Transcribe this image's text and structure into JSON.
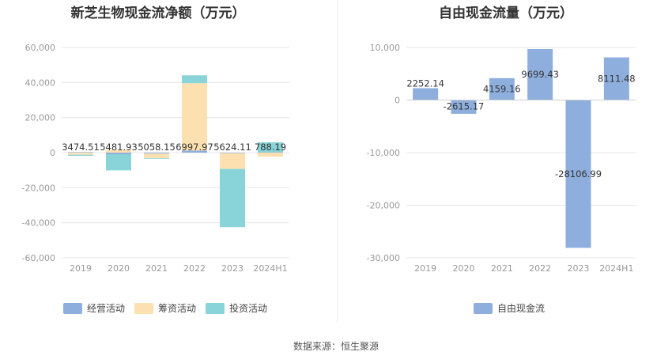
{
  "source": "数据来源：恒生聚源",
  "colors": {
    "operating": "#8eaedd",
    "financing": "#fde0b0",
    "investing": "#88d4d8",
    "free_cash_flow": "#8eaedd",
    "grid": "#e6e6e6",
    "divider": "#ebebeb"
  },
  "chart_data": [
    {
      "type": "bar",
      "stacked": true,
      "title": "新芝生物现金流净额（万元）",
      "categories": [
        "2019",
        "2020",
        "2021",
        "2022",
        "2023",
        "2024H1"
      ],
      "ylim": [
        -60000,
        60000
      ],
      "yticks": [
        60000,
        40000,
        20000,
        0,
        -20000,
        -40000,
        -60000
      ],
      "ytick_labels": [
        "60,000",
        "40,000",
        "20,000",
        "0",
        "-20,000",
        "-40,000",
        "-60,000"
      ],
      "grid": true,
      "legend": "bottom",
      "series": [
        {
          "name": "经营活动",
          "color_key": "operating",
          "values": [
            300,
            -900,
            -500,
            1200,
            -300,
            300
          ]
        },
        {
          "name": "筹资活动",
          "color_key": "financing",
          "values": [
            -1200,
            1600,
            -2700,
            38400,
            -9000,
            -2300
          ]
        },
        {
          "name": "投资活动",
          "color_key": "investing",
          "values": [
            -600,
            -9200,
            -300,
            4500,
            -33200,
            5600
          ]
        }
      ],
      "data_labels": [
        "3474.51",
        "5481.93",
        "5058.15",
        "6997.97",
        "5624.11",
        "788.19"
      ]
    },
    {
      "type": "bar",
      "title": "自由现金流量（万元）",
      "categories": [
        "2019",
        "2020",
        "2021",
        "2022",
        "2023",
        "2024H1"
      ],
      "ylim": [
        -30000,
        10000
      ],
      "yticks": [
        10000,
        0,
        -10000,
        -20000,
        -30000
      ],
      "ytick_labels": [
        "10,000",
        "0",
        "-10,000",
        "-20,000",
        "-30,000"
      ],
      "grid": true,
      "legend": "bottom",
      "series": [
        {
          "name": "自由现金流",
          "color_key": "free_cash_flow",
          "values": [
            2252.14,
            -2615.17,
            4159.16,
            9699.43,
            -28106.99,
            8111.48
          ]
        }
      ],
      "data_labels": [
        "2252.14",
        "-2615.17",
        "4159.16",
        "9699.43",
        "-28106.99",
        "8111.48"
      ]
    }
  ]
}
